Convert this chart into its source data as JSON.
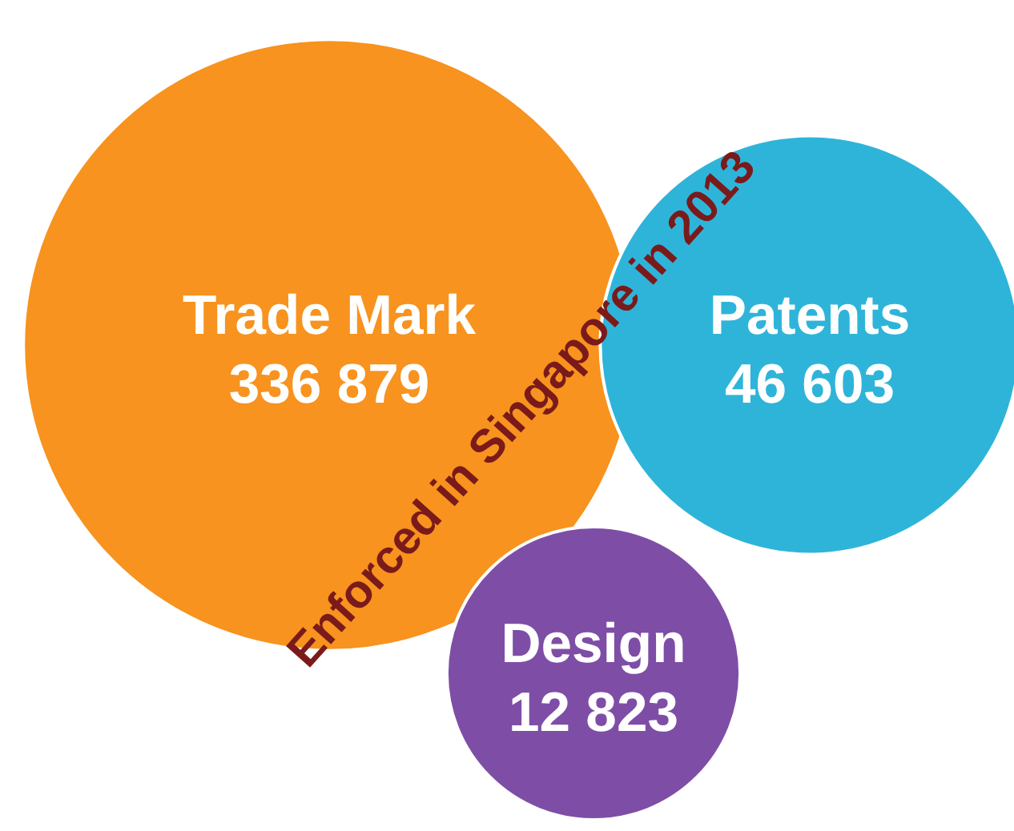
{
  "chart_data": {
    "type": "other",
    "title": "Enforced in Singapore in 2013",
    "categories": [
      "Trade Mark",
      "Patents",
      "Design"
    ],
    "values": [
      336879,
      46603,
      12823
    ],
    "value_labels": [
      "336 879",
      "46 603",
      "12 823"
    ],
    "colors": [
      "#f7931e",
      "#2fb4d9",
      "#7e4ea6"
    ]
  }
}
